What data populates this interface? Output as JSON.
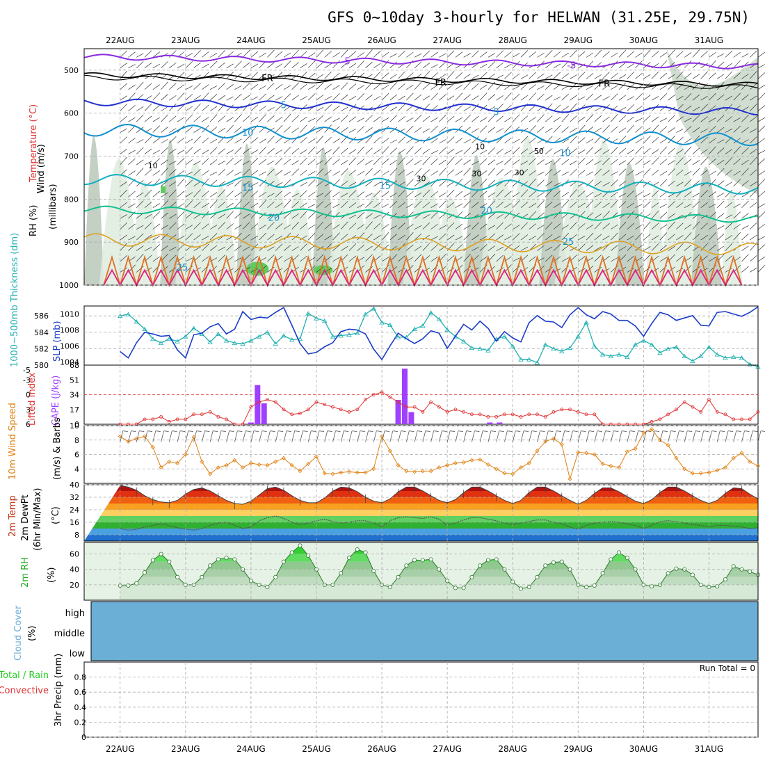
{
  "title": "GFS 0~10day 3-hourly for HELWAN (31.25E, 29.75N)",
  "colors": {
    "wind": "#800080",
    "temp": "#e03030",
    "rh": "#22cc22",
    "thick": "#20b0b0",
    "slp": "#1a3cc8",
    "cape": "#a040ff",
    "li": "#e03030",
    "w10": "#e08010",
    "temp2m": "#c03010",
    "dew": "#606060",
    "rh2m": "#40c040",
    "cloud": "#6baed6",
    "gray": "#999999"
  },
  "chart_data": [
    {
      "type": "line",
      "panel": "upper-air",
      "title": "GFS 0~10day 3-hourly for HELWAN (31.25E, 29.75N)",
      "dates": [
        "22AUG",
        "23AUG",
        "24AUG",
        "25AUG",
        "26AUG",
        "27AUG",
        "28AUG",
        "29AUG",
        "30AUG",
        "31AUG"
      ],
      "ylabel_parts": [
        "Wind (m/s)",
        "Temperature (°C)",
        "RH (%)"
      ],
      "ylabel_right": "(millibars)",
      "yticks": [
        500,
        600,
        700,
        800,
        900,
        1000
      ],
      "ylim": [
        450,
        1000
      ],
      "contour_labels": [
        {
          "text": "-5",
          "day": 3.45,
          "p": 478
        },
        {
          "text": "-5",
          "day": 6.9,
          "p": 488
        },
        {
          "text": "FR",
          "day": 2.25,
          "p": 518
        },
        {
          "text": "FR",
          "day": 4.9,
          "p": 528
        },
        {
          "text": "FR",
          "day": 7.4,
          "p": 530
        },
        {
          "text": "5",
          "day": 2.5,
          "p": 580
        },
        {
          "text": "5",
          "day": 5.75,
          "p": 596
        },
        {
          "text": "10",
          "day": 1.95,
          "p": 644
        },
        {
          "text": "10",
          "day": 6.8,
          "p": 692
        },
        {
          "text": "15",
          "day": 1.95,
          "p": 772
        },
        {
          "text": "15",
          "day": 4.05,
          "p": 768
        },
        {
          "text": "20",
          "day": 2.35,
          "p": 842
        },
        {
          "text": "20",
          "day": 5.6,
          "p": 826
        },
        {
          "text": "25",
          "day": 6.85,
          "p": 898
        },
        {
          "text": "25",
          "day": 0.95,
          "p": 958
        }
      ],
      "rh_labels": [
        {
          "text": "50",
          "day": 6.4,
          "p": 688
        },
        {
          "text": "30",
          "day": 4.6,
          "p": 752
        },
        {
          "text": "30",
          "day": 5.45,
          "p": 740
        },
        {
          "text": "30",
          "day": 6.1,
          "p": 738
        },
        {
          "text": "10",
          "day": 5.5,
          "p": 677
        },
        {
          "text": "10",
          "day": 0.5,
          "p": 722
        }
      ]
    },
    {
      "type": "line",
      "panel": "thickness-slp",
      "ylabel_left": "1000~500mb Thickness (dm)",
      "ylabel_right": "SLP (mb)",
      "left_ticks": [
        580,
        582,
        584,
        586
      ],
      "right_ticks": [
        1004,
        1006,
        1008,
        1010
      ],
      "thickness_ylim": [
        580,
        587.2
      ],
      "slp_ylim": [
        1003.6,
        1011.0
      ],
      "time_days": [
        0,
        0.125,
        0.25,
        0.375,
        0.5,
        0.625,
        0.75,
        0.875,
        1,
        1.125,
        1.25,
        1.375,
        1.5,
        1.625,
        1.75,
        1.875,
        2,
        2.125,
        2.25,
        2.375,
        2.5,
        2.625,
        2.75,
        2.875,
        3,
        3.125,
        3.25,
        3.375,
        3.5,
        3.625,
        3.75,
        3.875,
        4,
        4.125,
        4.25,
        4.375,
        4.5,
        4.625,
        4.75,
        4.875,
        5,
        5.125,
        5.25,
        5.375,
        5.5,
        5.625,
        5.75,
        5.875,
        6,
        6.125,
        6.25,
        6.375,
        6.5,
        6.625,
        6.75,
        6.875,
        7,
        7.125,
        7.25,
        7.375,
        7.5,
        7.625,
        7.75,
        7.875,
        8,
        8.125,
        8.25,
        8.375,
        8.5,
        8.625,
        8.75,
        8.875,
        9,
        9.125,
        9.25,
        9.375,
        9.5,
        9.625,
        9.75
      ],
      "series": [
        {
          "name": "Thickness",
          "values": [
            586.0,
            586.2,
            585.3,
            584.4,
            583.2,
            582.7,
            583.2,
            582.9,
            583.5,
            584.5,
            583.8,
            582.8,
            583.8,
            583.0,
            582.7,
            582.6,
            583.0,
            583.5,
            584.0,
            582.6,
            583.6,
            583.1,
            583.2,
            586.3,
            585.7,
            585.4,
            583.5,
            583.6,
            583.7,
            583.9,
            586.2,
            586.9,
            585.2,
            584.9,
            583.4,
            583.4,
            584.4,
            584.8,
            586.4,
            585.6,
            584.3,
            583.5,
            582.9,
            582.1,
            582.0,
            581.8,
            583.2,
            583.5,
            582.3,
            580.7,
            580.7,
            580.3,
            582.5,
            582.0,
            581.7,
            582.1,
            583.5,
            585.2,
            582.3,
            581.3,
            581.1,
            581.3,
            581.0,
            582.5,
            583.0,
            582.5,
            581.5,
            582.0,
            582.2,
            581.1,
            580.5,
            581.1,
            582.2,
            581.3,
            580.9,
            581.0,
            580.9,
            580.1,
            579.8
          ]
        },
        {
          "name": "SLP",
          "values": [
            1005.3,
            1004.5,
            1006.4,
            1007.7,
            1007.5,
            1007.2,
            1007.3,
            1005.5,
            1004.5,
            1007.4,
            1007.6,
            1008.4,
            1008.8,
            1007.5,
            1008.1,
            1010.3,
            1009.3,
            1009.6,
            1009.5,
            1010.2,
            1010.8,
            1008.6,
            1006.3,
            1005.0,
            1005.2,
            1005.9,
            1006.4,
            1007.8,
            1008.1,
            1008.0,
            1007.5,
            1005.6,
            1004.3,
            1006.0,
            1007.6,
            1006.9,
            1006.3,
            1006.9,
            1007.9,
            1007.6,
            1005.7,
            1007.2,
            1008.7,
            1008.0,
            1009.1,
            1008.2,
            1006.6,
            1007.8,
            1007.0,
            1006.5,
            1008.9,
            1009.8,
            1009.1,
            1009.0,
            1008.3,
            1009.9,
            1010.8,
            1009.9,
            1009.4,
            1010.3,
            1010.0,
            1009.2,
            1009.2,
            1008.5,
            1007.2,
            1008.8,
            1010.2,
            1009.9,
            1009.2,
            1009.5,
            1009.8,
            1008.6,
            1008.5,
            1010.2,
            1010.3,
            1010.0,
            1009.7,
            1010.2,
            1010.9
          ]
        }
      ]
    },
    {
      "type": "bar",
      "panel": "cape-li",
      "ylabel_left": "Lifted Index",
      "ylabel_right": "CAPE (J/kg)",
      "li_ticks": [
        "-5",
        "-3",
        "0",
        "3",
        "6"
      ],
      "cape_ticks": [
        "68",
        "51",
        "34",
        "17",
        "0"
      ],
      "li_ylim": [
        -6,
        6
      ],
      "cape_ylim": [
        0,
        68
      ],
      "series": [
        {
          "name": "CAPE",
          "times": [
            2.0,
            2.1,
            2.2,
            4.25,
            4.35,
            4.45,
            5.65,
            5.8
          ],
          "values": [
            2,
            45,
            24,
            28,
            64,
            14,
            2,
            2
          ]
        },
        {
          "name": "Lifted Index",
          "times": [
            0,
            0.125,
            0.25,
            0.375,
            0.5,
            0.625,
            0.75,
            0.875,
            1,
            1.125,
            1.25,
            1.375,
            1.5,
            1.625,
            1.75,
            1.875,
            2,
            2.125,
            2.25,
            2.375,
            2.5,
            2.625,
            2.75,
            2.875,
            3,
            3.125,
            3.25,
            3.375,
            3.5,
            3.625,
            3.75,
            3.875,
            4,
            4.125,
            4.25,
            4.375,
            4.5,
            4.625,
            4.75,
            4.875,
            5,
            5.125,
            5.25,
            5.375,
            5.5,
            5.625,
            5.75,
            5.875,
            6,
            6.125,
            6.25,
            6.375,
            6.5,
            6.625,
            6.75,
            6.875,
            7,
            7.125,
            7.25,
            7.375,
            7.5,
            7.625,
            7.75,
            7.875,
            8,
            8.125,
            8.25,
            8.375,
            8.5,
            8.625,
            8.75,
            8.875,
            9,
            9.125,
            9.25,
            9.375,
            9.5,
            9.625,
            9.75
          ],
          "values": [
            6.0,
            6.0,
            6.0,
            5.0,
            5.0,
            4.5,
            5.5,
            5.0,
            5.0,
            4.0,
            4.0,
            3.5,
            4.5,
            5.0,
            6.0,
            7.0,
            2.5,
            1.5,
            1.0,
            1.5,
            3.0,
            4.0,
            3.8,
            3.0,
            1.5,
            2.0,
            2.5,
            3.0,
            3.5,
            3.0,
            1.0,
            0.0,
            -0.5,
            0.5,
            1.5,
            2.5,
            2.5,
            3.5,
            1.5,
            2.5,
            3.5,
            3.0,
            3.5,
            4.0,
            4.0,
            4.5,
            4.5,
            4.0,
            4.0,
            4.5,
            4.0,
            4.0,
            4.5,
            3.5,
            3.0,
            3.0,
            3.5,
            4.0,
            4.0,
            6.0,
            7.0,
            8.0,
            7.5,
            6.5,
            6.0,
            5.5,
            5.0,
            4.0,
            3.0,
            1.5,
            2.5,
            3.5,
            1.0,
            3.5,
            4.0,
            5.0,
            5.0,
            5.0,
            3.5
          ]
        }
      ]
    },
    {
      "type": "line",
      "panel": "wind10m",
      "ylabel": "10m Wind Speed (m/s) & Barbs",
      "yticks": [
        4,
        6,
        8,
        10
      ],
      "ylim": [
        2,
        10
      ],
      "series": [
        {
          "name": "10m Wind Speed",
          "values": [
            8.5,
            7.8,
            8.2,
            8.5,
            7.0,
            4.2,
            5.0,
            4.8,
            6.0,
            8.4,
            5.0,
            3.3,
            4.2,
            4.5,
            5.2,
            4.2,
            4.8,
            4.6,
            4.5,
            5.0,
            5.5,
            4.5,
            3.7,
            4.7,
            5.7,
            3.4,
            3.3,
            3.5,
            3.6,
            3.5,
            3.5,
            4.0,
            8.5,
            6.5,
            4.5,
            3.7,
            3.6,
            3.7,
            3.7,
            4.2,
            4.5,
            4.8,
            4.9,
            5.2,
            5.3,
            4.6,
            4.0,
            3.4,
            3.3,
            4.2,
            4.8,
            6.5,
            7.8,
            8.2,
            7.4,
            2.6,
            6.3,
            6.2,
            6.0,
            4.7,
            4.4,
            4.2,
            6.4,
            6.8,
            9.0,
            9.5,
            8.0,
            7.3,
            5.5,
            4.0,
            3.4,
            3.4,
            3.5,
            3.8,
            4.2,
            5.5,
            6.2,
            5.0,
            4.4
          ]
        }
      ]
    },
    {
      "type": "area",
      "panel": "temp2m",
      "ylabel": "2m Temp 2m DewPt (6hr Min/Max) (°C)",
      "yticks": [
        8,
        16,
        24,
        32,
        40
      ],
      "ylim": [
        4,
        40
      ],
      "series": [
        {
          "name": "2m Temp",
          "values": [
            39.5,
            38.5,
            36.5,
            33.0,
            30.5,
            29.0,
            28.5,
            30.0,
            34.0,
            37.0,
            38.0,
            36.0,
            33.0,
            30.0,
            28.0,
            27.5,
            29.5,
            33.5,
            37.5,
            38.5,
            36.5,
            33.0,
            30.0,
            28.5,
            28.5,
            31.5,
            36.0,
            38.5,
            38.0,
            35.5,
            32.0,
            29.5,
            28.5,
            31.0,
            35.5,
            38.5,
            38.5,
            36.0,
            33.0,
            30.0,
            28.5,
            30.5,
            35.0,
            38.5,
            38.5,
            36.0,
            33.0,
            30.0,
            28.0,
            30.0,
            35.0,
            38.5,
            38.5,
            36.0,
            33.0,
            30.0,
            27.5,
            30.0,
            34.5,
            38.0,
            38.0,
            35.5,
            32.5,
            29.5,
            28.0,
            30.5,
            35.0,
            38.5,
            38.5,
            36.0,
            33.0,
            30.0,
            28.0,
            30.0,
            34.5,
            38.0,
            37.5,
            34.0,
            31.0
          ]
        },
        {
          "name": "2m DewPt",
          "values": [
            12.0,
            11.0,
            11.5,
            13.0,
            14.0,
            15.0,
            14.0,
            12.5,
            11.5,
            11.0,
            12.0,
            14.0,
            15.5,
            16.0,
            14.0,
            12.0,
            13.0,
            17.0,
            19.0,
            20.0,
            18.5,
            16.0,
            14.5,
            15.5,
            17.0,
            18.0,
            16.5,
            15.5,
            16.0,
            17.0,
            17.0,
            15.5,
            13.0,
            17.0,
            19.0,
            19.5,
            19.0,
            18.5,
            19.5,
            18.0,
            14.0,
            15.5,
            17.5,
            19.0,
            19.0,
            18.0,
            17.0,
            15.5,
            14.5,
            15.5,
            16.5,
            17.5,
            17.5,
            16.0,
            15.0,
            13.0,
            11.5,
            14.0,
            15.5,
            16.0,
            16.5,
            16.0,
            15.0,
            14.0,
            12.0,
            14.0,
            16.5,
            17.0,
            16.5,
            15.5,
            14.5,
            14.0,
            13.0,
            14.0,
            14.0,
            13.5,
            13.0,
            12.0,
            12.5
          ]
        }
      ]
    },
    {
      "type": "area",
      "panel": "rh2m",
      "ylabel": "2m RH (%)",
      "yticks": [
        20,
        40,
        60
      ],
      "ylim": [
        0,
        75
      ],
      "series": [
        {
          "name": "2m RH",
          "values": [
            19,
            19,
            22,
            36,
            52,
            60,
            50,
            30,
            20,
            20,
            30,
            45,
            53,
            55,
            53,
            40,
            25,
            20,
            17,
            30,
            50,
            62,
            71,
            58,
            40,
            20,
            20,
            35,
            55,
            66,
            62,
            38,
            20,
            17,
            30,
            45,
            52,
            52,
            53,
            40,
            25,
            16,
            16,
            30,
            45,
            52,
            53,
            40,
            24,
            15,
            17,
            30,
            45,
            49,
            50,
            40,
            20,
            17,
            19,
            35,
            53,
            62,
            55,
            40,
            20,
            18,
            20,
            35,
            41,
            40,
            33,
            20,
            17,
            18,
            27,
            44,
            40,
            37,
            33
          ]
        }
      ]
    },
    {
      "type": "heatmap",
      "panel": "cloud-cover",
      "ylabel": "Cloud Cover (%)",
      "levels": [
        "high",
        "middle",
        "low"
      ]
    },
    {
      "type": "bar",
      "panel": "precip",
      "ylabel_left": "Total / Rain",
      "ylabel_left2": "Convective",
      "ylabel": "3hr Precip (mm)",
      "yticks": [
        "0",
        "0.2",
        "0.4",
        "0.6",
        "0.8"
      ],
      "ylim": [
        0,
        1
      ],
      "run_total": "Run Total = 0",
      "values": []
    }
  ]
}
